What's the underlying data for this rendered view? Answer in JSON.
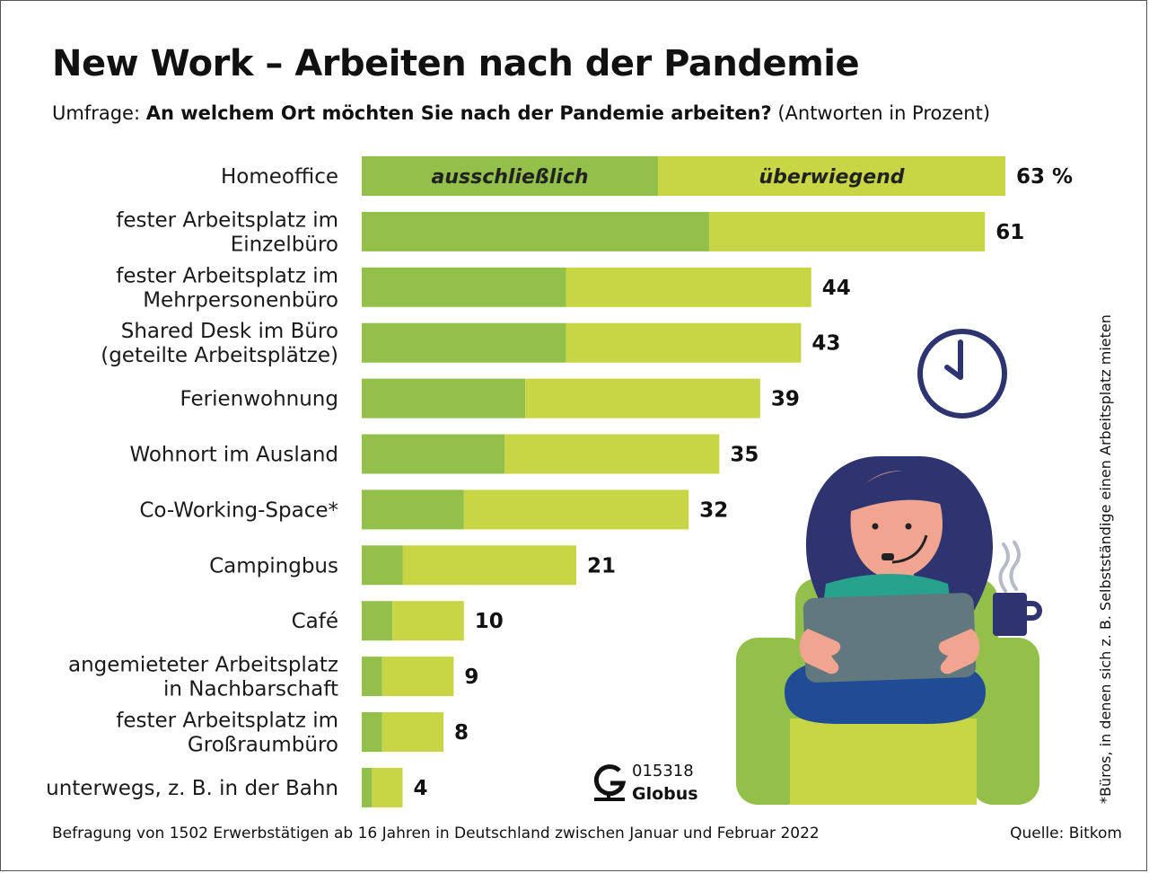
{
  "title": "New Work – Arbeiten nach der Pandemie",
  "subtitle_prefix": "Umfrage: ",
  "subtitle_question": "An welchem Ort möchten Sie nach der Pandemie arbeiten?",
  "subtitle_suffix": " (Antworten in Prozent)",
  "footnote_side": "*Büros, in denen sich z. B. Selbstständige einen Arbeitsplatz mieten",
  "footer": "Befragung von 1502 Erwerbstätigen ab 16 Jahren in Deutschland zwischen Januar und Februar 2022",
  "source": "Quelle: Bitkom",
  "graphic_id": "015318",
  "brand": "Globus",
  "colors": {
    "exclusive": "#92c04a",
    "mostly": "#c8d645",
    "navy": "#2d3470"
  },
  "chart_data": {
    "type": "bar",
    "orientation": "horizontal",
    "stacked": true,
    "unit_label": "%",
    "categories": [
      [
        "Homeoffice"
      ],
      [
        "fester Arbeitsplatz im",
        "Einzelbüro"
      ],
      [
        "fester Arbeitsplatz im",
        "Mehrpersonenbüro"
      ],
      [
        "Shared Desk im Büro",
        "(geteilte Arbeitsplätze)"
      ],
      [
        "Ferienwohnung"
      ],
      [
        "Wohnort im Ausland"
      ],
      [
        "Co-Working-Space*"
      ],
      [
        "Campingbus"
      ],
      [
        "Café"
      ],
      [
        "angemieteter Arbeitsplatz",
        "in Nachbarschaft"
      ],
      [
        "fester Arbeitsplatz im",
        "Großraumbüro"
      ],
      [
        "unterwegs, z. B. in der Bahn"
      ]
    ],
    "series": [
      {
        "name": "ausschließlich",
        "values": [
          29,
          34,
          20,
          20,
          16,
          14,
          10,
          4,
          3,
          2,
          2,
          1
        ]
      },
      {
        "name": "überwiegend",
        "values": [
          34,
          27,
          24,
          23,
          23,
          21,
          22,
          17,
          7,
          7,
          6,
          3
        ]
      }
    ],
    "totals": [
      63,
      61,
      44,
      43,
      39,
      35,
      32,
      21,
      10,
      9,
      8,
      4
    ],
    "total_labels": [
      "63 %",
      "61",
      "44",
      "43",
      "39",
      "35",
      "32",
      "21",
      "10",
      "9",
      "8",
      "4"
    ],
    "xlim": [
      0,
      63
    ],
    "grid": false,
    "legend_placement": "inside-first-bar"
  }
}
